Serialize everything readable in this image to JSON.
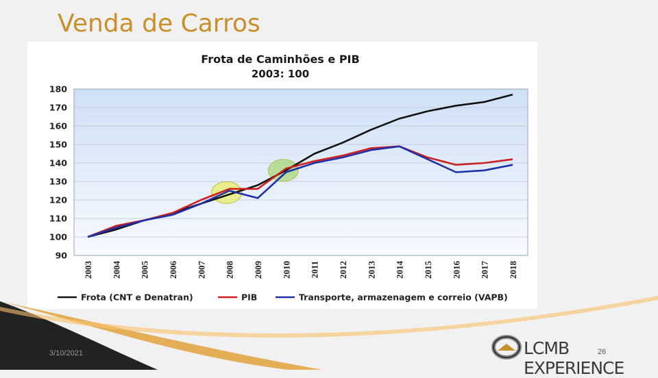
{
  "slide": {
    "title": "Venda de Carros",
    "date": "3/10/2021",
    "page_number": "26",
    "logo_text": "LCMB EXPERIENCE"
  },
  "colors": {
    "title": "#c8902a",
    "plot_bg_top": "#cfe0f6",
    "plot_bg_bottom": "#f7fafe",
    "frota": "#111111",
    "pib": "#cc1f1f",
    "transporte": "#1f2fa8",
    "highlight": "#e8ee6a",
    "highlight2": "#a8d878"
  },
  "chart_data": {
    "type": "line",
    "title": "Frota de Caminhões e PIB",
    "subtitle": "2003: 100",
    "xlabel": "",
    "ylabel": "",
    "x": [
      "2003",
      "2004",
      "2005",
      "2006",
      "2007",
      "2008",
      "2009",
      "2010",
      "2011",
      "2012",
      "2013",
      "2014",
      "2015",
      "2016",
      "2017",
      "2018"
    ],
    "ylim": [
      90,
      180
    ],
    "yticks": [
      90,
      100,
      110,
      120,
      130,
      140,
      150,
      160,
      170,
      180
    ],
    "grid": true,
    "legend_position": "bottom",
    "series": [
      {
        "name": "Frota (CNT e Denatran)",
        "values": [
          100,
          104,
          109,
          113,
          118,
          123,
          128,
          136,
          145,
          151,
          158,
          164,
          168,
          171,
          173,
          177
        ]
      },
      {
        "name": "PIB",
        "values": [
          100,
          106,
          109,
          113,
          120,
          126,
          126,
          137,
          141,
          144,
          148,
          149,
          143,
          139,
          140,
          142
        ]
      },
      {
        "name": "Transporte, armazenagem e correio (VAPB)",
        "values": [
          100,
          105,
          109,
          112,
          118,
          125,
          121,
          135,
          140,
          143,
          147,
          149,
          142,
          135,
          136,
          139
        ]
      }
    ],
    "annotations": [
      {
        "type": "highlight-circle",
        "x": "2008",
        "y": 124
      },
      {
        "type": "highlight-circle",
        "x": "2010",
        "y": 136
      }
    ]
  }
}
